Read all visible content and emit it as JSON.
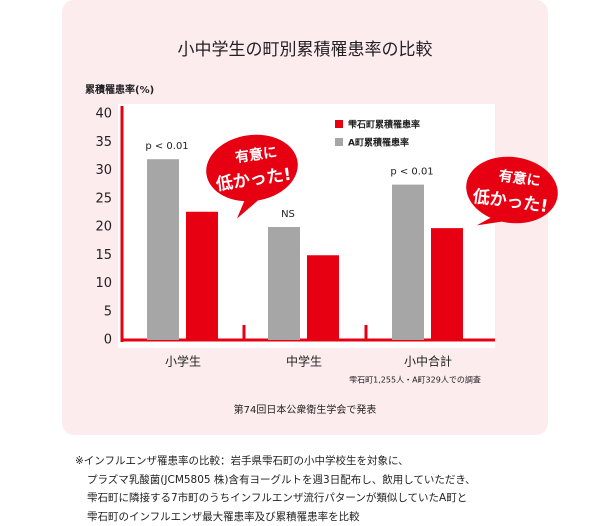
{
  "chart_data": {
    "type": "bar",
    "title": "小中学生の町別累積罹患率の比較",
    "y_label": "累積罹患率(%)",
    "categories": [
      "小学生",
      "中学生",
      "小中合計"
    ],
    "series": [
      {
        "name": "雫石町累積罹患率",
        "color": "#e60012",
        "values": [
          22.7,
          15,
          19.8
        ]
      },
      {
        "name": "A町累積罹患率",
        "color": "#a6a6a6",
        "values": [
          32,
          20,
          27.5
        ]
      }
    ],
    "ylim": [
      0,
      40
    ],
    "yticks": [
      0,
      5,
      10,
      15,
      20,
      25,
      30,
      35,
      40
    ],
    "significance": [
      "p < 0.01",
      "NS",
      "p < 0.01"
    ],
    "callouts": [
      [
        "有意に",
        "低かった!"
      ],
      [
        "有意に",
        "低かった!"
      ]
    ],
    "sample_note": "雫石町1,255人・A町329人での調査",
    "source": "第74回日本公衆衛生学会で発表"
  },
  "footnote": [
    "※インフルエンザ罹患率の比較：岩手県雫石町の小中学校生を対象に、",
    "プラズマ乳酸菌(JCM5805 株)含有ヨーグルトを週3日配布し、飲用していただき、",
    "雫石町に隣接する7市町のうちインフルエンザ流行パターンが類似していたA町と",
    "雫石町のインフルエンザ最大罹患率及び累積罹患率を比較"
  ]
}
